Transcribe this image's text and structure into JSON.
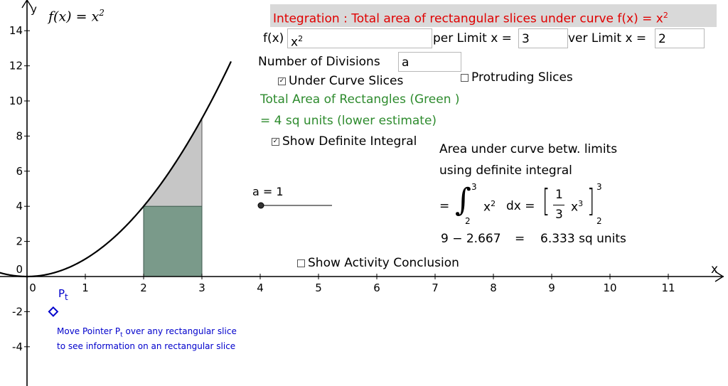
{
  "title": {
    "text": "Integration : Total area of rectangular slices under curve f(x) = x",
    "sup": "2"
  },
  "function_label": {
    "text": "f(x) = x",
    "sup": "2"
  },
  "inputs": {
    "fx_label": "f(x)",
    "fx_value": "x",
    "fx_sup": "2",
    "upper_label": "per Limit x =",
    "upper_value": "3",
    "lower_label": "ver Limit x =",
    "lower_value": "2",
    "divisions_label": "Number of Divisions",
    "divisions_value": "a"
  },
  "checkboxes": {
    "under_curve": {
      "label": "Under Curve Slices",
      "checked": true
    },
    "protruding": {
      "label": "Protruding Slices",
      "checked": false
    },
    "show_integral": {
      "label": "Show Definite Integral",
      "checked": true
    },
    "show_conclusion": {
      "label": "Show Activity Conclusion",
      "checked": false
    }
  },
  "result": {
    "line1": "Total Area of Rectangles (Green )",
    "line2": "= 4 sq units (lower estimate)"
  },
  "integral": {
    "caption1": "Area under curve betw. limits",
    "caption2": "using definite integral",
    "equals": "=",
    "upper": "3",
    "lower": "2",
    "integrand": "x",
    "integrand_sup": "2",
    "dx": "dx =",
    "frac_num": "1",
    "frac_den": "3",
    "antider": "x",
    "antider_sup": "3",
    "bracket_upper": "3",
    "bracket_lower": "2",
    "evaluation_left": "9 − 2.667",
    "evaluation_eq": "=",
    "evaluation_right": "6.333  sq units"
  },
  "slider": {
    "label": "a = 1",
    "value": 1
  },
  "pointer": {
    "label": "P",
    "sub": "t",
    "note1": "Move Pointer P",
    "note1_sub": "t",
    "note1_tail": " over any rectangular slice",
    "note2": "to see information on an rectangular slice"
  },
  "axes": {
    "x_label": "x",
    "y_label": "y",
    "x_ticks": [
      "0",
      "1",
      "2",
      "3",
      "4",
      "5",
      "6",
      "7",
      "8",
      "9",
      "10",
      "11"
    ],
    "y_ticks": [
      "14",
      "12",
      "10",
      "8",
      "6",
      "4",
      "2",
      "0",
      "-2",
      "-4"
    ]
  },
  "colors": {
    "title_text": "#e00000",
    "green_text": "#2e8b2e",
    "rect_fill": "#7a9a8a",
    "protruding_fill": "#c6c6c6",
    "pointer": "#0000cc"
  },
  "chart_data": {
    "type": "area",
    "function": "x^2",
    "lower_limit": 2,
    "upper_limit": 3,
    "divisions": 1,
    "rectangles": [
      {
        "x0": 2,
        "x1": 3,
        "height": 4
      }
    ],
    "rectangle_area": 4,
    "integral_value": 6.333,
    "pointer_point": {
      "x": 0.45,
      "y": -2
    }
  }
}
